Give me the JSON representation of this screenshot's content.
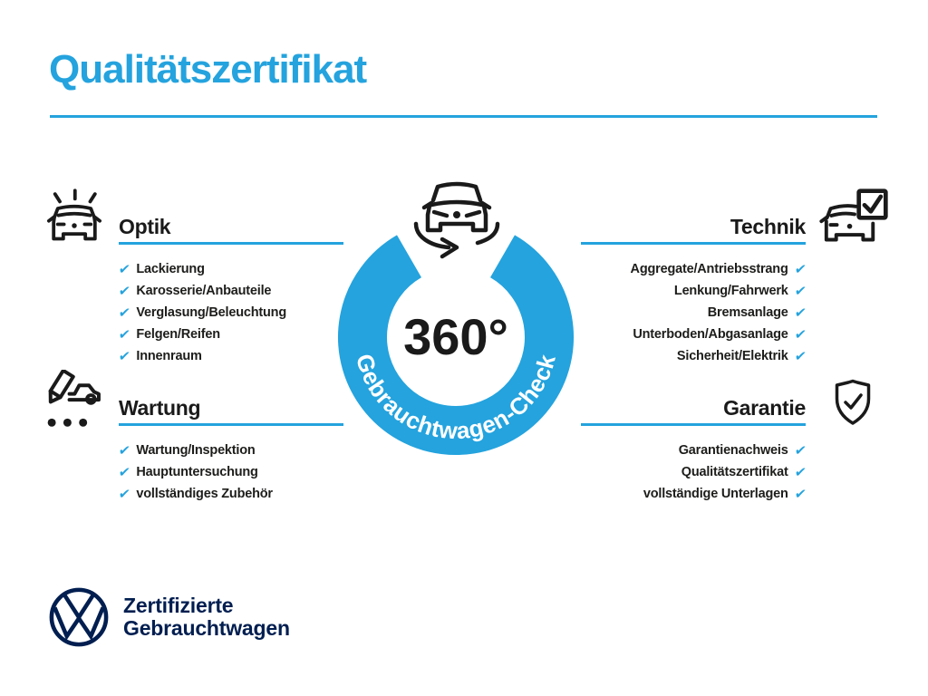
{
  "title": "Qualitätszertifikat",
  "colors": {
    "accent": "#24A3DE",
    "ink": "#1A1A1A",
    "navy": "#001E50"
  },
  "check_glyph": "✔",
  "center": {
    "value": "360°",
    "ring_label": "Gebrauchtwagen-Check",
    "icon": "car-rotate-icon"
  },
  "sections": [
    {
      "id": "optik",
      "title": "Optik",
      "icon": "car-shine-icon",
      "side": "left",
      "items": [
        "Lackierung",
        "Karosserie/Anbauteile",
        "Verglasung/Beleuchtung",
        "Felgen/Reifen",
        "Innenraum"
      ]
    },
    {
      "id": "technik",
      "title": "Technik",
      "icon": "car-checkbox-icon",
      "side": "right",
      "items": [
        "Aggregate/Antriebsstrang",
        "Lenkung/Fahrwerk",
        "Bremsanlage",
        "Unterboden/Abgasanlage",
        "Sicherheit/Elektrik"
      ]
    },
    {
      "id": "wartung",
      "title": "Wartung",
      "icon": "pencil-car-icon",
      "side": "left",
      "items": [
        "Wartung/Inspektion",
        "Hauptuntersuchung",
        "vollständiges Zubehör"
      ]
    },
    {
      "id": "garantie",
      "title": "Garantie",
      "icon": "shield-check-icon",
      "side": "right",
      "items": [
        "Garantienachweis",
        "Qualitätszertifikat",
        "vollständige Unterlagen"
      ]
    }
  ],
  "footer": {
    "logo": "vw-logo",
    "line1": "Zertifizierte",
    "line2": "Gebrauchtwagen"
  }
}
